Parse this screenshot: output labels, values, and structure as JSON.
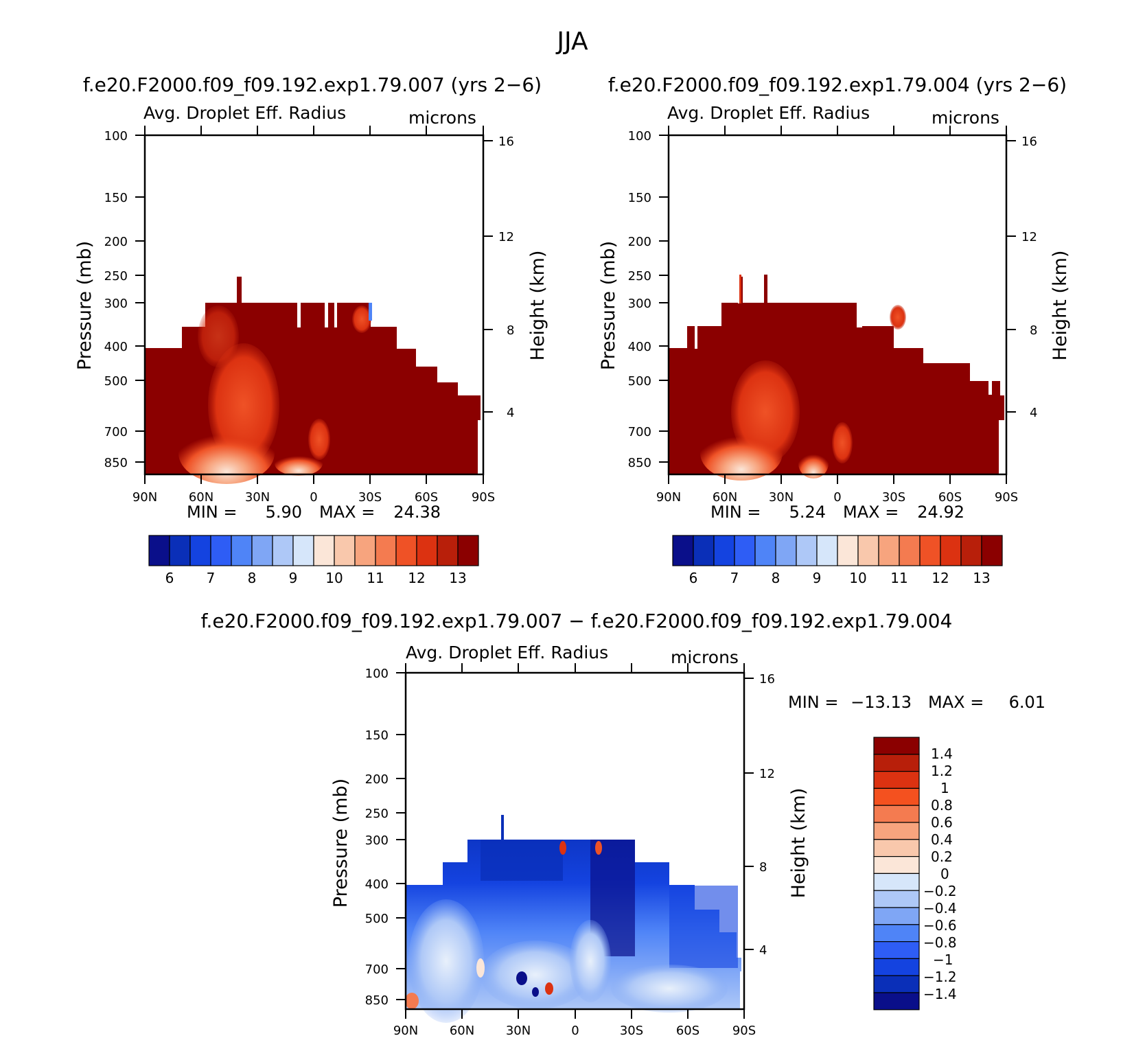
{
  "figure": {
    "title": "JJA"
  },
  "chart_data": [
    {
      "type": "contour",
      "run_title": "f.e20.F2000.f09_f09.192.exp1.79.007 (yrs 2−6)",
      "variable_label": "Avg. Droplet Eff. Radius",
      "units": "microns",
      "ylabel": "Pressure (mb)",
      "ylabel_right": "Height (km)",
      "x_ticks": [
        "90N",
        "60N",
        "30N",
        "0",
        "30S",
        "60S",
        "90S"
      ],
      "pressure_ticks": [
        "100",
        "150",
        "200",
        "250",
        "300",
        "400",
        "500",
        "700",
        "850"
      ],
      "height_ticks": [
        "16",
        "12",
        "8",
        "4"
      ],
      "min_label": "MIN =",
      "min_value": "5.90",
      "max_label": "MAX =",
      "max_value": "24.38",
      "colorbar": {
        "labels": [
          "6",
          "7",
          "8",
          "9",
          "10",
          "11",
          "12",
          "13"
        ],
        "colors": [
          "#0a0f8a",
          "#0a2fb8",
          "#1443e0",
          "#2e5df5",
          "#4f84f7",
          "#7fa6f5",
          "#aec8f7",
          "#d6e6fa",
          "#fbe6d8",
          "#f9c8ac",
          "#f7a47e",
          "#f47b50",
          "#ef5226",
          "#dc3211",
          "#b81f0a",
          "#8b0000"
        ]
      }
    },
    {
      "type": "contour",
      "run_title": "f.e20.F2000.f09_f09.192.exp1.79.004 (yrs 2−6)",
      "variable_label": "Avg. Droplet Eff. Radius",
      "units": "microns",
      "ylabel": "Pressure (mb)",
      "ylabel_right": "Height (km)",
      "x_ticks": [
        "90N",
        "60N",
        "30N",
        "0",
        "30S",
        "60S",
        "90S"
      ],
      "pressure_ticks": [
        "100",
        "150",
        "200",
        "250",
        "300",
        "400",
        "500",
        "700",
        "850"
      ],
      "height_ticks": [
        "16",
        "12",
        "8",
        "4"
      ],
      "min_label": "MIN =",
      "min_value": "5.24",
      "max_label": "MAX =",
      "max_value": "24.92",
      "colorbar": {
        "labels": [
          "6",
          "7",
          "8",
          "9",
          "10",
          "11",
          "12",
          "13"
        ],
        "colors": [
          "#0a0f8a",
          "#0a2fb8",
          "#1443e0",
          "#2e5df5",
          "#4f84f7",
          "#7fa6f5",
          "#aec8f7",
          "#d6e6fa",
          "#fbe6d8",
          "#f9c8ac",
          "#f7a47e",
          "#f47b50",
          "#ef5226",
          "#dc3211",
          "#b81f0a",
          "#8b0000"
        ]
      }
    },
    {
      "type": "contour",
      "run_title": "f.e20.F2000.f09_f09.192.exp1.79.007 − f.e20.F2000.f09_f09.192.exp1.79.004",
      "variable_label": "Avg. Droplet Eff. Radius",
      "units": "microns",
      "ylabel": "Pressure (mb)",
      "ylabel_right": "Height (km)",
      "x_ticks": [
        "90N",
        "60N",
        "30N",
        "0",
        "30S",
        "60S",
        "90S"
      ],
      "pressure_ticks": [
        "100",
        "150",
        "200",
        "250",
        "300",
        "400",
        "500",
        "700",
        "850"
      ],
      "height_ticks": [
        "16",
        "12",
        "8",
        "4"
      ],
      "min_label": "MIN =",
      "min_value": "−13.13",
      "max_label": "MAX =",
      "max_value": "6.01",
      "colorbar": {
        "labels": [
          "1.4",
          "1.2",
          "1",
          "0.8",
          "0.6",
          "0.4",
          "0.2",
          "0",
          "−0.2",
          "−0.4",
          "−0.6",
          "−0.8",
          "−1",
          "−1.2",
          "−1.4"
        ],
        "colors": [
          "#8b0000",
          "#b81f0a",
          "#dc3211",
          "#f4511f",
          "#f47b50",
          "#f7a47e",
          "#f9c8ac",
          "#fbe6d8",
          "#d6e6fa",
          "#aec8f7",
          "#7fa6f5",
          "#4f84f7",
          "#2e5df5",
          "#1443e0",
          "#0a2fb8",
          "#0a0f8a"
        ]
      }
    }
  ]
}
